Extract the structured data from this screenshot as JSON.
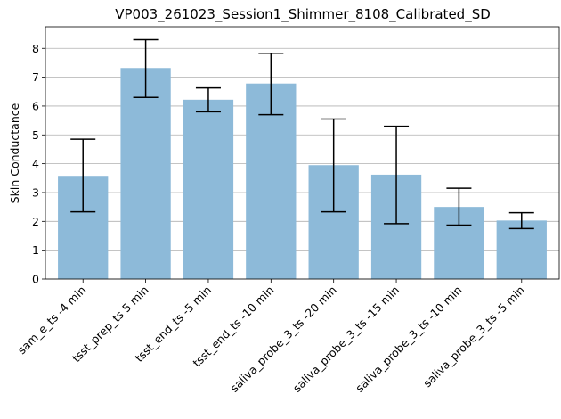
{
  "chart_data": {
    "type": "bar",
    "title": "VP003_261023_Session1_Shimmer_8108_Calibrated_SD",
    "xlabel": "",
    "ylabel": "Skin Conductance",
    "ylim": [
      0,
      8.75
    ],
    "yticks": [
      0,
      1,
      2,
      3,
      4,
      5,
      6,
      7,
      8
    ],
    "grid": "y",
    "bar_color": "#8dbad9",
    "categories": [
      "sam_e_ts -4 min",
      "tsst_prep_ts 5 min",
      "tsst_end_ts -5 min",
      "tsst_end_ts -10 min",
      "saliva_probe_3_ts -20 min",
      "saliva_probe_3_ts -15 min",
      "saliva_probe_3_ts -10 min",
      "saliva_probe_3_ts -5 min"
    ],
    "values": [
      3.58,
      7.32,
      6.22,
      6.78,
      3.95,
      3.62,
      2.5,
      2.03
    ],
    "error_low": [
      2.33,
      6.3,
      5.8,
      5.7,
      2.33,
      1.92,
      1.87,
      1.75
    ],
    "error_high": [
      4.85,
      8.3,
      6.63,
      7.83,
      5.55,
      5.3,
      3.15,
      2.3
    ]
  }
}
